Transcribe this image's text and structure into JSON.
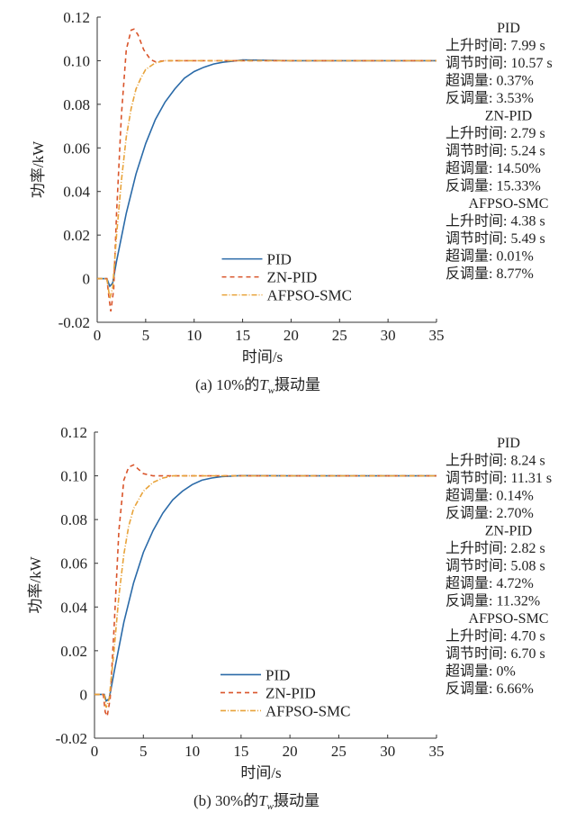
{
  "chart_data": [
    {
      "type": "line",
      "caption": "(a) 10%的",
      "caption_var": "T",
      "caption_sub": "w",
      "caption_tail": "摄动量",
      "xlabel": "时间/s",
      "ylabel": "功率/kW",
      "xlim": [
        0,
        35
      ],
      "ylim": [
        -0.02,
        0.12
      ],
      "xticks": [
        "0",
        "5",
        "10",
        "15",
        "20",
        "25",
        "30",
        "35"
      ],
      "yticks": [
        "-0.02",
        "0",
        "0.02",
        "0.04",
        "0.06",
        "0.08",
        "0.10",
        "0.12"
      ],
      "legend_position": "bottom-right",
      "series": [
        {
          "name": "PID",
          "color": "#2a6aa8",
          "dash": "",
          "points": [
            [
              0,
              0
            ],
            [
              1,
              0
            ],
            [
              1.3,
              -0.0035
            ],
            [
              1.6,
              -0.002
            ],
            [
              2,
              0.008
            ],
            [
              3,
              0.03
            ],
            [
              4,
              0.048
            ],
            [
              5,
              0.062
            ],
            [
              6,
              0.073
            ],
            [
              7,
              0.081
            ],
            [
              8,
              0.087
            ],
            [
              9,
              0.092
            ],
            [
              10,
              0.095
            ],
            [
              11,
              0.097
            ],
            [
              12,
              0.0985
            ],
            [
              13,
              0.0993
            ],
            [
              14,
              0.0998
            ],
            [
              15,
              0.1004
            ],
            [
              20,
              0.1
            ],
            [
              35,
              0.1
            ]
          ]
        },
        {
          "name": "ZN-PID",
          "color": "#d9542a",
          "dash": "5,4",
          "points": [
            [
              0,
              0
            ],
            [
              1,
              0
            ],
            [
              1.2,
              -0.008
            ],
            [
              1.4,
              -0.015
            ],
            [
              1.7,
              -0.005
            ],
            [
              2,
              0.03
            ],
            [
              2.5,
              0.075
            ],
            [
              3,
              0.105
            ],
            [
              3.5,
              0.114
            ],
            [
              3.8,
              0.1145
            ],
            [
              4.2,
              0.112
            ],
            [
              4.8,
              0.105
            ],
            [
              5.5,
              0.1005
            ],
            [
              6,
              0.0995
            ],
            [
              7,
              0.1
            ],
            [
              35,
              0.1
            ]
          ]
        },
        {
          "name": "AFPSO-SMC",
          "color": "#e8a33a",
          "dash": "6,2,1,2",
          "points": [
            [
              0,
              0
            ],
            [
              1,
              0
            ],
            [
              1.3,
              -0.009
            ],
            [
              1.6,
              -0.004
            ],
            [
              2,
              0.02
            ],
            [
              2.5,
              0.045
            ],
            [
              3,
              0.065
            ],
            [
              3.5,
              0.078
            ],
            [
              4,
              0.087
            ],
            [
              4.5,
              0.092
            ],
            [
              5,
              0.096
            ],
            [
              6,
              0.099
            ],
            [
              7,
              0.1
            ],
            [
              35,
              0.1
            ]
          ]
        }
      ],
      "annotations": [
        {
          "title": "PID",
          "lines": [
            "上升时间: 7.99 s",
            "调节时间: 10.57 s",
            "超调量: 0.37%",
            "反调量: 3.53%"
          ]
        },
        {
          "title": "ZN-PID",
          "lines": [
            "上升时间: 2.79 s",
            "调节时间: 5.24 s",
            "超调量: 14.50%",
            "反调量: 15.33%"
          ]
        },
        {
          "title": "AFPSO-SMC",
          "lines": [
            "上升时间: 4.38 s",
            "调节时间: 5.49 s",
            "超调量: 0.01%",
            "反调量: 8.77%"
          ]
        }
      ]
    },
    {
      "type": "line",
      "caption": "(b) 30%的",
      "caption_var": "T",
      "caption_sub": "w",
      "caption_tail": "摄动量",
      "xlabel": "时间/s",
      "ylabel": "功率/kW",
      "xlim": [
        0,
        35
      ],
      "ylim": [
        -0.02,
        0.12
      ],
      "xticks": [
        "0",
        "5",
        "10",
        "15",
        "20",
        "25",
        "30",
        "35"
      ],
      "yticks": [
        "-0.02",
        "0",
        "0.02",
        "0.04",
        "0.06",
        "0.08",
        "0.10",
        "0.12"
      ],
      "legend_position": "bottom-right",
      "series": [
        {
          "name": "PID",
          "color": "#2a6aa8",
          "dash": "",
          "points": [
            [
              0,
              0
            ],
            [
              1,
              0
            ],
            [
              1.2,
              -0.003
            ],
            [
              1.5,
              -0.002
            ],
            [
              2,
              0.01
            ],
            [
              3,
              0.033
            ],
            [
              4,
              0.051
            ],
            [
              5,
              0.065
            ],
            [
              6,
              0.075
            ],
            [
              7,
              0.083
            ],
            [
              8,
              0.089
            ],
            [
              9,
              0.093
            ],
            [
              10,
              0.096
            ],
            [
              11,
              0.098
            ],
            [
              12,
              0.099
            ],
            [
              13,
              0.0996
            ],
            [
              15,
              0.1001
            ],
            [
              20,
              0.1
            ],
            [
              35,
              0.1
            ]
          ]
        },
        {
          "name": "ZN-PID",
          "color": "#d9542a",
          "dash": "5,4",
          "points": [
            [
              0,
              0
            ],
            [
              0.9,
              0
            ],
            [
              1.1,
              -0.008
            ],
            [
              1.3,
              -0.01
            ],
            [
              1.6,
              -0.002
            ],
            [
              2,
              0.03
            ],
            [
              2.5,
              0.075
            ],
            [
              3,
              0.098
            ],
            [
              3.5,
              0.104
            ],
            [
              4,
              0.105
            ],
            [
              4.5,
              0.103
            ],
            [
              5,
              0.101
            ],
            [
              6,
              0.1
            ],
            [
              35,
              0.1
            ]
          ]
        },
        {
          "name": "AFPSO-SMC",
          "color": "#e8a33a",
          "dash": "6,2,1,2",
          "points": [
            [
              0,
              0
            ],
            [
              1,
              0
            ],
            [
              1.2,
              -0.006
            ],
            [
              1.5,
              -0.002
            ],
            [
              2,
              0.02
            ],
            [
              2.5,
              0.045
            ],
            [
              3,
              0.064
            ],
            [
              3.5,
              0.077
            ],
            [
              4,
              0.085
            ],
            [
              5,
              0.093
            ],
            [
              6,
              0.097
            ],
            [
              7,
              0.099
            ],
            [
              8,
              0.1
            ],
            [
              35,
              0.1
            ]
          ]
        }
      ],
      "annotations": [
        {
          "title": "PID",
          "lines": [
            "上升时间: 8.24 s",
            "调节时间: 11.31 s",
            "超调量: 0.14%",
            "反调量: 2.70%"
          ]
        },
        {
          "title": "ZN-PID",
          "lines": [
            "上升时间: 2.82 s",
            "调节时间: 5.08 s",
            "超调量: 4.72%",
            "反调量: 11.32%"
          ]
        },
        {
          "title": "AFPSO-SMC",
          "lines": [
            "上升时间: 4.70 s",
            "调节时间: 6.70 s",
            "超调量: 0%",
            "反调量: 6.66%"
          ]
        }
      ]
    }
  ]
}
